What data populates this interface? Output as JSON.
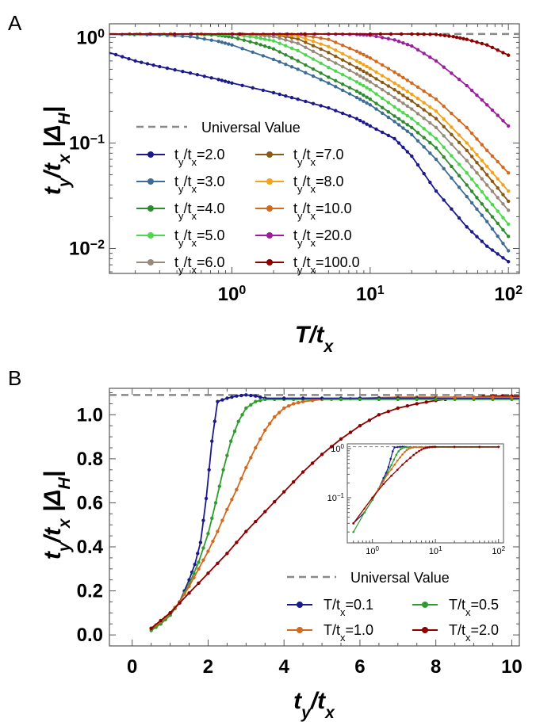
{
  "panels": {
    "a": {
      "label": "A",
      "xlabel": "T/t_x",
      "ylabel": "t_y/t_x |Δ_H|",
      "xticks": [
        {
          "v": 1,
          "base": "10",
          "exp": "0"
        },
        {
          "v": 10,
          "base": "10",
          "exp": "1"
        },
        {
          "v": 100,
          "base": "10",
          "exp": "2"
        }
      ],
      "yticks": [
        {
          "v": 0.01,
          "base": "10",
          "exp": "−2"
        },
        {
          "v": 0.1,
          "base": "10",
          "exp": "−1"
        },
        {
          "v": 1,
          "base": "10",
          "exp": "0"
        }
      ],
      "legend_universal": "Universal Value"
    },
    "b": {
      "label": "B",
      "xlabel": "t_y/t_x",
      "ylabel": "t_y/t_x |Δ_H|",
      "xticks": [
        "0",
        "2",
        "4",
        "6",
        "8",
        "10"
      ],
      "yticks": [
        "0.0",
        "0.2",
        "0.4",
        "0.6",
        "0.8",
        "1.0"
      ],
      "legend_universal": "Universal Value",
      "inset": {
        "xticks": [
          {
            "v": 1,
            "base": "10",
            "exp": "0"
          },
          {
            "v": 10,
            "base": "10",
            "exp": "1"
          },
          {
            "v": 100,
            "base": "10",
            "exp": "2"
          }
        ],
        "yticks": [
          {
            "v": 0.1,
            "base": "10",
            "exp": "−1"
          },
          {
            "v": 1,
            "base": "10",
            "exp": "0"
          }
        ]
      }
    }
  },
  "chart_data": [
    {
      "type": "line",
      "panel": "A",
      "xscale": "log",
      "yscale": "log",
      "xlim": [
        0.13,
        120
      ],
      "ylim": [
        0.0058,
        1.35
      ],
      "xlabel": "T/t_x",
      "ylabel": "t_y/t_x |Δ_H|",
      "legend_position": "lower-left",
      "universal_value": 1.08,
      "series": [
        {
          "name": "t_y/t_x=2.0",
          "color": "#1a1a8c",
          "x": [
            0.13,
            0.2,
            0.3,
            0.5,
            0.8,
            1,
            2,
            3,
            5,
            8,
            10,
            15,
            20,
            30,
            50,
            70,
            100
          ],
          "y": [
            0.72,
            0.6,
            0.53,
            0.46,
            0.4,
            0.37,
            0.3,
            0.26,
            0.215,
            0.17,
            0.145,
            0.11,
            0.075,
            0.035,
            0.016,
            0.0105,
            0.0075
          ]
        },
        {
          "name": "t_y/t_x=3.0",
          "color": "#3d6d96",
          "x": [
            0.13,
            0.3,
            0.5,
            0.8,
            1,
            2,
            3,
            5,
            8,
            10,
            15,
            20,
            30,
            50,
            70,
            100
          ],
          "y": [
            1.07,
            1.06,
            1.02,
            0.92,
            0.85,
            0.62,
            0.5,
            0.37,
            0.27,
            0.23,
            0.16,
            0.12,
            0.07,
            0.031,
            0.018,
            0.0095
          ]
        },
        {
          "name": "t_y/t_x=4.0",
          "color": "#2e8b2e",
          "x": [
            0.13,
            0.5,
            0.8,
            1,
            1.5,
            2,
            3,
            5,
            8,
            10,
            15,
            20,
            30,
            50,
            70,
            100
          ],
          "y": [
            1.08,
            1.08,
            1.05,
            1.01,
            0.88,
            0.78,
            0.6,
            0.42,
            0.31,
            0.26,
            0.18,
            0.14,
            0.09,
            0.04,
            0.023,
            0.013
          ]
        },
        {
          "name": "t_y/t_x=5.0",
          "color": "#4fd64f",
          "x": [
            0.13,
            0.8,
            1,
            1.5,
            2,
            3,
            5,
            8,
            10,
            15,
            20,
            30,
            50,
            70,
            100
          ],
          "y": [
            1.08,
            1.08,
            1.07,
            1.0,
            0.93,
            0.75,
            0.52,
            0.38,
            0.32,
            0.22,
            0.17,
            0.11,
            0.052,
            0.03,
            0.017
          ]
        },
        {
          "name": "t_y/t_x=6.0",
          "color": "#978a7a",
          "x": [
            0.13,
            1,
            1.5,
            2,
            3,
            5,
            8,
            10,
            15,
            20,
            30,
            50,
            70,
            100
          ],
          "y": [
            1.08,
            1.08,
            1.06,
            1.02,
            0.88,
            0.62,
            0.45,
            0.38,
            0.27,
            0.21,
            0.14,
            0.068,
            0.04,
            0.023
          ]
        },
        {
          "name": "t_y/t_x=7.0",
          "color": "#8b5a14",
          "x": [
            0.13,
            1,
            2,
            3,
            5,
            8,
            10,
            15,
            20,
            30,
            50,
            70,
            100
          ],
          "y": [
            1.08,
            1.08,
            1.07,
            0.97,
            0.72,
            0.52,
            0.44,
            0.32,
            0.25,
            0.17,
            0.085,
            0.05,
            0.028
          ]
        },
        {
          "name": "t_y/t_x=8.0",
          "color": "#f2a31a",
          "x": [
            0.13,
            1,
            2,
            3,
            5,
            8,
            10,
            15,
            20,
            30,
            50,
            70,
            100
          ],
          "y": [
            1.08,
            1.08,
            1.08,
            1.03,
            0.82,
            0.6,
            0.51,
            0.37,
            0.29,
            0.2,
            0.1,
            0.06,
            0.035
          ]
        },
        {
          "name": "t_y/t_x=10.0",
          "color": "#d2691e",
          "x": [
            0.13,
            1,
            2,
            3,
            5,
            8,
            10,
            15,
            20,
            30,
            50,
            70,
            100
          ],
          "y": [
            1.08,
            1.08,
            1.08,
            1.07,
            0.96,
            0.74,
            0.64,
            0.47,
            0.37,
            0.26,
            0.14,
            0.085,
            0.052
          ]
        },
        {
          "name": "t_y/t_x=20.0",
          "color": "#9c1e9c",
          "x": [
            0.13,
            2,
            5,
            8,
            10,
            15,
            20,
            30,
            50,
            70,
            100
          ],
          "y": [
            1.08,
            1.08,
            1.08,
            1.07,
            1.05,
            0.95,
            0.83,
            0.6,
            0.35,
            0.23,
            0.145
          ]
        },
        {
          "name": "t_y/t_x=100.0",
          "color": "#8b0000",
          "x": [
            0.13,
            10,
            20,
            30,
            40,
            50,
            70,
            100
          ],
          "y": [
            1.08,
            1.08,
            1.08,
            1.07,
            1.02,
            0.96,
            0.85,
            0.68
          ]
        }
      ]
    },
    {
      "type": "line",
      "panel": "B",
      "xlim": [
        -0.6,
        10.2
      ],
      "ylim": [
        -0.05,
        1.12
      ],
      "xlabel": "t_y/t_x",
      "ylabel": "t_y/t_x |Δ_H|",
      "legend_position": "lower-right",
      "universal_value": 1.09,
      "series": [
        {
          "name": "T/t_x=0.1",
          "color": "#1a1a8c",
          "x": [
            0.5,
            0.75,
            1.0,
            1.25,
            1.5,
            1.65,
            1.8,
            1.95,
            2.1,
            2.25,
            2.5,
            2.75,
            3.0,
            3.25,
            3.5
          ],
          "y": [
            0.03,
            0.05,
            0.09,
            0.15,
            0.25,
            0.32,
            0.42,
            0.62,
            0.88,
            1.06,
            1.075,
            1.085,
            1.09,
            1.085,
            1.075
          ]
        },
        {
          "name": "T/t_x=0.5",
          "color": "#2e9c2e",
          "x": [
            0.5,
            0.75,
            1.0,
            1.25,
            1.5,
            1.75,
            2.0,
            2.2,
            2.4,
            2.6,
            2.8,
            3.0,
            3.25,
            3.5,
            4.0,
            4.5,
            5.0
          ],
          "y": [
            0.02,
            0.05,
            0.09,
            0.15,
            0.23,
            0.33,
            0.46,
            0.6,
            0.75,
            0.88,
            0.97,
            1.03,
            1.06,
            1.07,
            1.07,
            1.07,
            1.07
          ]
        },
        {
          "name": "T/t_x=1.0",
          "color": "#d2691e",
          "x": [
            0.5,
            0.75,
            1.0,
            1.25,
            1.5,
            1.75,
            2.0,
            2.25,
            2.5,
            2.75,
            3.0,
            3.25,
            3.5,
            3.75,
            4.0,
            4.25,
            4.5,
            5.0,
            5.5,
            6.0,
            7.0,
            8.0
          ],
          "y": [
            0.03,
            0.06,
            0.1,
            0.15,
            0.22,
            0.3,
            0.38,
            0.47,
            0.57,
            0.66,
            0.76,
            0.85,
            0.93,
            0.99,
            1.03,
            1.05,
            1.06,
            1.07,
            1.07,
            1.075,
            1.08,
            1.08
          ]
        },
        {
          "name": "T/t_x=2.0",
          "color": "#8b0000",
          "x": [
            0.5,
            1.0,
            1.5,
            2.0,
            2.5,
            3.0,
            3.5,
            4.0,
            4.5,
            5.0,
            5.5,
            6.0,
            6.5,
            7.0,
            7.5,
            8.0,
            8.5,
            9.0,
            9.5,
            10.0
          ],
          "y": [
            0.03,
            0.1,
            0.19,
            0.28,
            0.37,
            0.47,
            0.56,
            0.65,
            0.74,
            0.82,
            0.89,
            0.95,
            1.0,
            1.03,
            1.05,
            1.065,
            1.075,
            1.08,
            1.085,
            1.085
          ]
        }
      ]
    }
  ]
}
